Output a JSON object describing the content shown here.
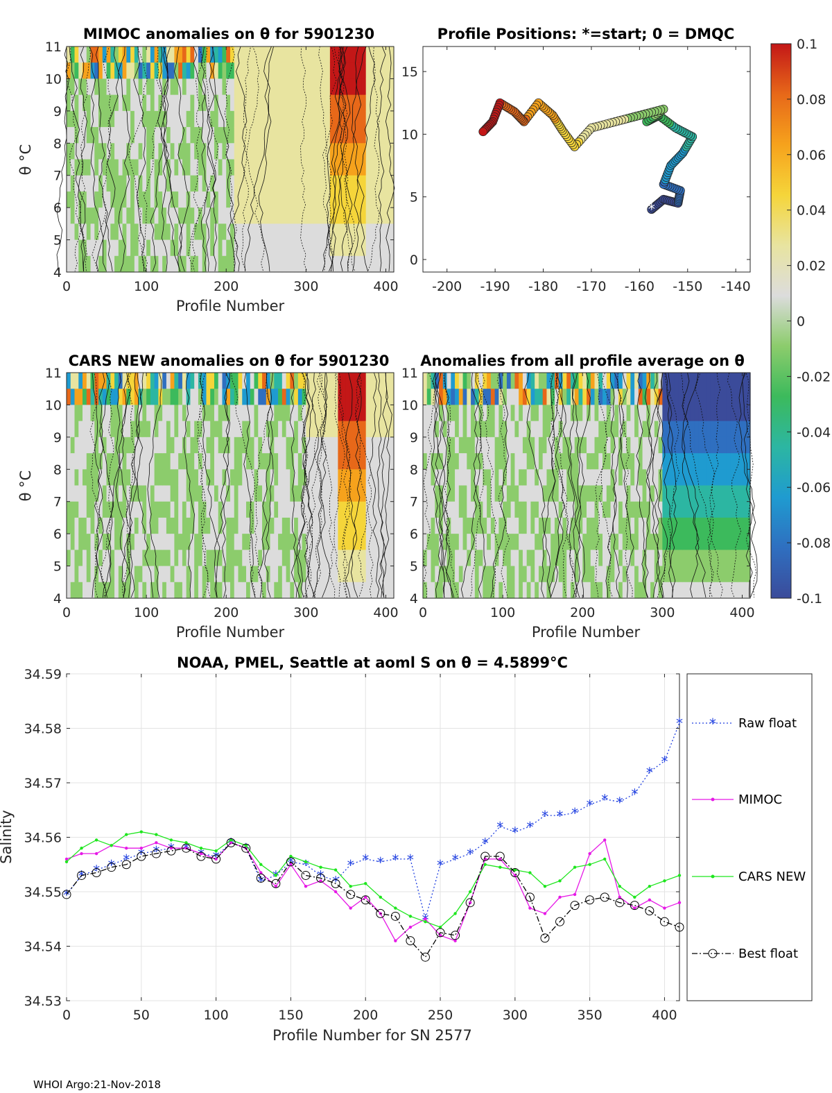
{
  "footer": "WHOI Argo:21-Nov-2018",
  "colormap": [
    "#3b4b9a",
    "#2f6fc0",
    "#1f9bd0",
    "#2cb6a2",
    "#3cba5c",
    "#8ccc6c",
    "#dcdcdc",
    "#e8e4a0",
    "#f5d53a",
    "#f6a21c",
    "#e76819",
    "#c31717"
  ],
  "colorbar": {
    "limits": [
      -0.1,
      0.1
    ],
    "ticks": [
      "0.1",
      "0.08",
      "0.06",
      "0.04",
      "0.02",
      "0",
      "-0.02",
      "-0.04",
      "-0.06",
      "-0.08",
      "-0.1"
    ]
  },
  "chart_data": [
    {
      "id": "mimoc",
      "type": "heatmap",
      "title": "MIMOC anomalies on θ  for 5901230",
      "xlabel": "Profile Number",
      "ylabel": "θ °C",
      "xlim": [
        0,
        410
      ],
      "ylim": [
        4,
        11
      ],
      "xticks": [
        "0",
        "100",
        "200",
        "300",
        "400"
      ],
      "yticks": [
        "4",
        "5",
        "6",
        "7",
        "8",
        "9",
        "10",
        "11"
      ],
      "anomaly_by_profile_band": [
        {
          "from": 0,
          "to": 210,
          "value": 0.0
        },
        {
          "from": 210,
          "to": 330,
          "value": 0.03
        },
        {
          "from": 330,
          "to": 375,
          "value": 0.1
        },
        {
          "from": 375,
          "to": 410,
          "value": 0.03
        }
      ]
    },
    {
      "id": "positions",
      "type": "scatter",
      "title": "Profile Positions: *=start; 0 = DMQC",
      "xlim": [
        -205,
        -137
      ],
      "ylim": [
        -1,
        17
      ],
      "xticks": [
        "-200",
        "-190",
        "-180",
        "-170",
        "-160",
        "-150",
        "-140"
      ],
      "yticks": [
        "0",
        "5",
        "10",
        "15"
      ],
      "track": [
        {
          "lon": -157.5,
          "lat": 4.0
        },
        {
          "lon": -155.0,
          "lat": 4.8
        },
        {
          "lon": -152.0,
          "lat": 4.5
        },
        {
          "lon": -151.5,
          "lat": 5.5
        },
        {
          "lon": -155.0,
          "lat": 6.0
        },
        {
          "lon": -153.5,
          "lat": 7.5
        },
        {
          "lon": -151.0,
          "lat": 8.5
        },
        {
          "lon": -149.0,
          "lat": 9.8
        },
        {
          "lon": -152.5,
          "lat": 10.5
        },
        {
          "lon": -156.0,
          "lat": 11.5
        },
        {
          "lon": -158.5,
          "lat": 11.0
        },
        {
          "lon": -155.0,
          "lat": 12.0
        },
        {
          "lon": -160.0,
          "lat": 11.5
        },
        {
          "lon": -165.0,
          "lat": 11.0
        },
        {
          "lon": -170.0,
          "lat": 10.5
        },
        {
          "lon": -173.5,
          "lat": 9.0
        },
        {
          "lon": -176.0,
          "lat": 10.3
        },
        {
          "lon": -178.0,
          "lat": 11.5
        },
        {
          "lon": -181.0,
          "lat": 12.5
        },
        {
          "lon": -184.0,
          "lat": 11.0
        },
        {
          "lon": -186.0,
          "lat": 11.8
        },
        {
          "lon": -189.0,
          "lat": 12.5
        },
        {
          "lon": -190.5,
          "lat": 11.0
        },
        {
          "lon": -192.5,
          "lat": 10.2
        }
      ]
    },
    {
      "id": "cars",
      "type": "heatmap",
      "title": "CARS NEW anomalies on θ for 5901230",
      "xlabel": "Profile Number",
      "ylabel": "θ °C",
      "xlim": [
        0,
        410
      ],
      "ylim": [
        4,
        11
      ],
      "xticks": [
        "0",
        "100",
        "200",
        "300",
        "400"
      ],
      "yticks": [
        "4",
        "5",
        "6",
        "7",
        "8",
        "9",
        "10",
        "11"
      ],
      "anomaly_by_profile_band": [
        {
          "from": 0,
          "to": 300,
          "value": 0.0
        },
        {
          "from": 300,
          "to": 340,
          "value": 0.02
        },
        {
          "from": 340,
          "to": 375,
          "value": 0.1
        },
        {
          "from": 375,
          "to": 410,
          "value": 0.02
        }
      ]
    },
    {
      "id": "allavg",
      "type": "heatmap",
      "title": "Anomalies from all profile average on θ",
      "xlabel": "Profile Number",
      "xlim": [
        0,
        410
      ],
      "ylim": [
        4,
        11
      ],
      "xticks": [
        "0",
        "100",
        "200",
        "300",
        "400"
      ],
      "yticks": [
        "4",
        "5",
        "6",
        "7",
        "8",
        "9",
        "10",
        "11"
      ],
      "anomaly_by_profile_band": [
        {
          "from": 0,
          "to": 300,
          "value": 0.0
        },
        {
          "from": 300,
          "to": 410,
          "value": -0.1
        }
      ]
    },
    {
      "id": "salinity",
      "type": "line",
      "title": "NOAA, PMEL, Seattle at aoml S on θ = 4.5899°C",
      "xlabel": "Profile Number for SN 2577",
      "ylabel": "Salinity",
      "xlim": [
        0,
        410
      ],
      "ylim": [
        34.53,
        34.59
      ],
      "xticks": [
        "0",
        "50",
        "100",
        "150",
        "200",
        "250",
        "300",
        "350",
        "400"
      ],
      "yticks": [
        "34.53",
        "34.54",
        "34.55",
        "34.56",
        "34.57",
        "34.58",
        "34.59"
      ],
      "x": [
        0,
        10,
        20,
        30,
        40,
        50,
        60,
        70,
        80,
        90,
        100,
        110,
        120,
        130,
        140,
        150,
        160,
        170,
        180,
        190,
        200,
        210,
        220,
        230,
        240,
        250,
        260,
        270,
        280,
        290,
        300,
        310,
        320,
        330,
        340,
        350,
        360,
        370,
        380,
        390,
        400,
        410
      ],
      "series": [
        {
          "name": "Raw float",
          "color": "#1f3fe0",
          "values": [
            34.5495,
            34.553,
            34.554,
            34.555,
            34.556,
            34.557,
            34.5575,
            34.558,
            34.558,
            34.557,
            34.5565,
            34.559,
            34.558,
            34.552,
            34.553,
            34.5555,
            34.555,
            34.553,
            34.552,
            34.555,
            34.556,
            34.5555,
            34.556,
            34.556,
            34.545,
            34.555,
            34.556,
            34.557,
            34.559,
            34.562,
            34.561,
            34.562,
            34.564,
            34.564,
            34.5645,
            34.566,
            34.567,
            34.5665,
            34.568,
            34.572,
            34.574,
            34.581
          ]
        },
        {
          "name": "MIMOC",
          "color": "#e619e6",
          "values": [
            34.556,
            34.557,
            34.557,
            34.5585,
            34.558,
            34.558,
            34.559,
            34.558,
            34.558,
            34.557,
            34.556,
            34.559,
            34.558,
            34.5535,
            34.551,
            34.555,
            34.551,
            34.552,
            34.55,
            34.547,
            34.549,
            34.546,
            34.541,
            34.5435,
            34.545,
            34.542,
            34.541,
            34.548,
            34.556,
            34.556,
            34.553,
            34.547,
            34.546,
            34.549,
            34.5495,
            34.557,
            34.5595,
            34.549,
            34.547,
            34.5485,
            34.547,
            34.548
          ]
        },
        {
          "name": "CARS NEW",
          "color": "#1ee61e",
          "values": [
            34.5555,
            34.558,
            34.5595,
            34.5585,
            34.5605,
            34.561,
            34.5605,
            34.5595,
            34.559,
            34.558,
            34.5575,
            34.5595,
            34.5585,
            34.555,
            34.553,
            34.5565,
            34.5555,
            34.5545,
            34.554,
            34.551,
            34.5515,
            34.549,
            34.547,
            34.5455,
            34.5445,
            34.5435,
            34.546,
            34.55,
            34.555,
            34.5545,
            34.554,
            34.5535,
            34.551,
            34.552,
            34.5545,
            34.555,
            34.556,
            34.551,
            34.549,
            34.551,
            34.552,
            34.553
          ]
        },
        {
          "name": "Best float",
          "color": "#000000",
          "values": [
            34.5495,
            34.553,
            34.5535,
            34.5545,
            34.555,
            34.5565,
            34.557,
            34.5575,
            34.558,
            34.5565,
            34.556,
            34.559,
            34.558,
            34.5525,
            34.5515,
            34.5555,
            34.553,
            34.5525,
            34.5515,
            34.5495,
            34.5485,
            34.546,
            34.5455,
            34.541,
            34.538,
            34.5425,
            34.542,
            34.548,
            34.5565,
            34.5565,
            34.5535,
            34.549,
            34.5415,
            34.5445,
            34.5475,
            34.5485,
            34.549,
            34.548,
            34.5475,
            34.5465,
            34.5445,
            34.5435
          ]
        }
      ],
      "legend_position": "outside-right"
    }
  ]
}
